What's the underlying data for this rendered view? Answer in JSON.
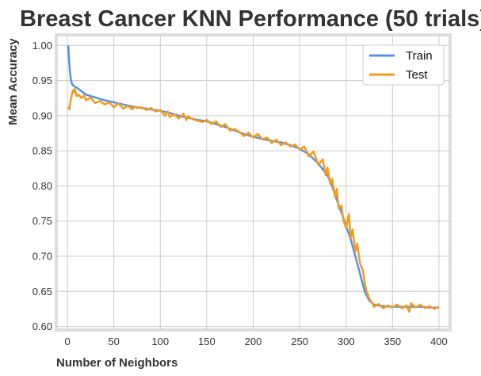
{
  "colors": {
    "train": "#5591ea",
    "test": "#f49b1e",
    "grid": "#cccccc",
    "frame": "#dddddd",
    "text": "#333333"
  },
  "chart_data": {
    "type": "line",
    "title": "Breast Cancer KNN Performance (50 trials)",
    "xlabel": "Number of Neighbors",
    "ylabel": "Mean Accuracy",
    "xlim": [
      -12,
      412
    ],
    "ylim": [
      0.595,
      1.015
    ],
    "xticks": [
      0,
      50,
      100,
      150,
      200,
      250,
      300,
      350,
      400
    ],
    "yticks": [
      0.6,
      0.65,
      0.7,
      0.75,
      0.8,
      0.85,
      0.9,
      0.95,
      1.0
    ],
    "grid": true,
    "legend_position": "top-right",
    "series": [
      {
        "name": "Train",
        "color": "#5591ea",
        "x": [
          1,
          2,
          3,
          4,
          5,
          7,
          10,
          15,
          20,
          30,
          40,
          50,
          60,
          70,
          80,
          90,
          100,
          110,
          120,
          130,
          140,
          150,
          160,
          170,
          180,
          190,
          200,
          210,
          220,
          230,
          240,
          250,
          260,
          270,
          280,
          285,
          290,
          295,
          300,
          305,
          310,
          315,
          320,
          325,
          330,
          340,
          350,
          360,
          370,
          380,
          390,
          400
        ],
        "y": [
          1.0,
          0.975,
          0.958,
          0.95,
          0.945,
          0.942,
          0.94,
          0.935,
          0.93,
          0.926,
          0.922,
          0.919,
          0.916,
          0.913,
          0.911,
          0.909,
          0.907,
          0.904,
          0.9,
          0.897,
          0.894,
          0.892,
          0.888,
          0.884,
          0.879,
          0.874,
          0.87,
          0.867,
          0.864,
          0.862,
          0.858,
          0.853,
          0.845,
          0.832,
          0.815,
          0.8,
          0.78,
          0.762,
          0.743,
          0.724,
          0.7,
          0.675,
          0.65,
          0.637,
          0.631,
          0.629,
          0.628,
          0.628,
          0.628,
          0.628,
          0.627,
          0.627
        ]
      },
      {
        "name": "Test",
        "color": "#f49b1e",
        "x": [
          1,
          2,
          3,
          4,
          5,
          6,
          7,
          8,
          10,
          12,
          15,
          18,
          20,
          25,
          30,
          35,
          40,
          45,
          50,
          55,
          60,
          65,
          70,
          72,
          75,
          80,
          85,
          90,
          95,
          100,
          105,
          108,
          110,
          115,
          120,
          125,
          128,
          130,
          135,
          140,
          145,
          150,
          155,
          160,
          165,
          170,
          175,
          180,
          185,
          190,
          195,
          200,
          205,
          210,
          215,
          220,
          225,
          230,
          235,
          240,
          245,
          250,
          255,
          260,
          265,
          270,
          275,
          278,
          280,
          283,
          285,
          288,
          290,
          292,
          295,
          297,
          300,
          303,
          305,
          307,
          310,
          312,
          315,
          318,
          320,
          322,
          325,
          328,
          330,
          335,
          340,
          345,
          350,
          355,
          360,
          365,
          368,
          370,
          375,
          380,
          385,
          390,
          395,
          400
        ],
        "y": [
          0.913,
          0.909,
          0.918,
          0.925,
          0.931,
          0.936,
          0.933,
          0.938,
          0.928,
          0.93,
          0.925,
          0.929,
          0.922,
          0.926,
          0.918,
          0.921,
          0.916,
          0.919,
          0.912,
          0.918,
          0.91,
          0.914,
          0.909,
          0.913,
          0.911,
          0.912,
          0.908,
          0.911,
          0.906,
          0.908,
          0.9,
          0.906,
          0.898,
          0.902,
          0.896,
          0.903,
          0.894,
          0.899,
          0.895,
          0.893,
          0.891,
          0.894,
          0.888,
          0.892,
          0.884,
          0.888,
          0.879,
          0.881,
          0.877,
          0.871,
          0.876,
          0.869,
          0.874,
          0.866,
          0.869,
          0.861,
          0.866,
          0.858,
          0.862,
          0.856,
          0.859,
          0.852,
          0.856,
          0.842,
          0.849,
          0.83,
          0.838,
          0.815,
          0.826,
          0.803,
          0.81,
          0.785,
          0.796,
          0.768,
          0.772,
          0.752,
          0.74,
          0.76,
          0.726,
          0.738,
          0.707,
          0.718,
          0.69,
          0.68,
          0.662,
          0.65,
          0.64,
          0.634,
          0.628,
          0.632,
          0.626,
          0.63,
          0.627,
          0.631,
          0.626,
          0.63,
          0.621,
          0.633,
          0.627,
          0.631,
          0.626,
          0.629,
          0.625,
          0.628
        ]
      }
    ]
  }
}
